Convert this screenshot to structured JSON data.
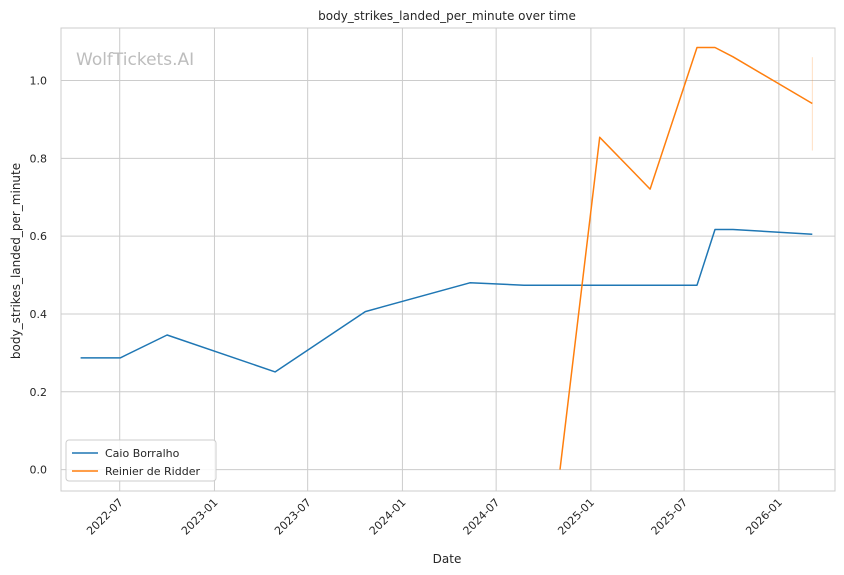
{
  "chart_data": {
    "type": "line",
    "title": "body_strikes_landed_per_minute over time",
    "xlabel": "Date",
    "ylabel": "body_strikes_landed_per_minute",
    "watermark": "WolfTickets.AI",
    "x_ticks": [
      "2022-07",
      "2023-01",
      "2023-07",
      "2024-01",
      "2024-07",
      "2025-01",
      "2025-07",
      "2026-01"
    ],
    "y_ticks": [
      "0.0",
      "0.2",
      "0.4",
      "0.6",
      "0.8",
      "1.0"
    ],
    "xlim": [
      "2022-03-09",
      "2026-04-20"
    ],
    "ylim": [
      -0.055,
      1.135
    ],
    "grid": true,
    "legend_position": "lower-left",
    "series": [
      {
        "name": "Caio Borralho",
        "color": "#1f77b4",
        "points": [
          {
            "x": "2022-04-16",
            "y": 0.287
          },
          {
            "x": "2022-07-02",
            "y": 0.287
          },
          {
            "x": "2022-10-01",
            "y": 0.346
          },
          {
            "x": "2023-04-29",
            "y": 0.251
          },
          {
            "x": "2023-10-21",
            "y": 0.406
          },
          {
            "x": "2024-05-11",
            "y": 0.48
          },
          {
            "x": "2024-08-24",
            "y": 0.474
          },
          {
            "x": "2025-07-26",
            "y": 0.474
          },
          {
            "x": "2025-08-30",
            "y": 0.617
          },
          {
            "x": "2025-10-04",
            "y": 0.617
          },
          {
            "x": "2026-03-07",
            "y": 0.605
          }
        ]
      },
      {
        "name": "Reinier de Ridder",
        "color": "#ff7f0e",
        "points": [
          {
            "x": "2024-11-02",
            "y": 0.0
          },
          {
            "x": "2025-01-18",
            "y": 0.854
          },
          {
            "x": "2025-04-26",
            "y": 0.721
          },
          {
            "x": "2025-07-26",
            "y": 1.085
          },
          {
            "x": "2025-08-30",
            "y": 1.085
          },
          {
            "x": "2025-10-04",
            "y": 1.061
          },
          {
            "x": "2026-03-07",
            "y": 0.941
          }
        ]
      }
    ],
    "error_bar": {
      "series": "Reinier de Ridder",
      "x": "2026-03-07",
      "low": 0.82,
      "high": 1.06
    }
  }
}
